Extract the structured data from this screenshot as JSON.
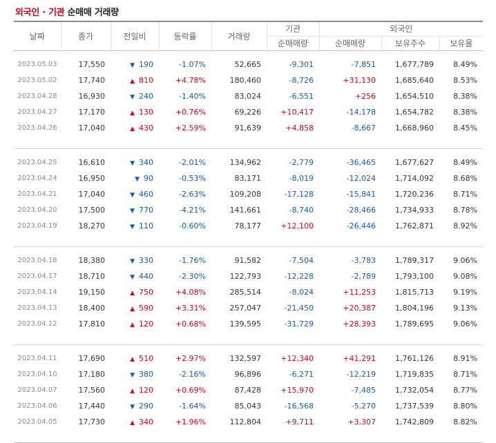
{
  "title": {
    "part1": "외국인 · 기관",
    "part2": " 순매매 거래량"
  },
  "headers": {
    "date": "날짜",
    "close": "종가",
    "change": "전일비",
    "rate": "등락률",
    "volume": "거래량",
    "institution": "기관",
    "foreign": "외국인",
    "inst_net": "순매매량",
    "foreign_net": "순매매량",
    "foreign_shares": "보유주수",
    "foreign_ratio": "보유율"
  },
  "colors": {
    "up": "#e0001b",
    "down": "#1259c3"
  },
  "groups": [
    {
      "rows": [
        {
          "date": "2023.05.03",
          "close": "17,550",
          "dir": "down",
          "change": "190",
          "rate": "-1.07%",
          "volume": "52,665",
          "inst": "-9,301",
          "foreign": "-7,851",
          "shares": "1,677,789",
          "ratio": "8.49%"
        },
        {
          "date": "2023.05.02",
          "close": "17,740",
          "dir": "up",
          "change": "810",
          "rate": "+4.78%",
          "volume": "180,460",
          "inst": "-8,726",
          "foreign": "+31,130",
          "shares": "1,685,640",
          "ratio": "8.53%"
        },
        {
          "date": "2023.04.28",
          "close": "16,930",
          "dir": "down",
          "change": "240",
          "rate": "-1.40%",
          "volume": "83,024",
          "inst": "-6,551",
          "foreign": "+256",
          "shares": "1,654,510",
          "ratio": "8.38%"
        },
        {
          "date": "2023.04.27",
          "close": "17,170",
          "dir": "up",
          "change": "130",
          "rate": "+0.76%",
          "volume": "69,226",
          "inst": "+10,417",
          "foreign": "-14,178",
          "shares": "1,654,782",
          "ratio": "8.38%"
        },
        {
          "date": "2023.04.26",
          "close": "17,040",
          "dir": "up",
          "change": "430",
          "rate": "+2.59%",
          "volume": "91,639",
          "inst": "+4,858",
          "foreign": "-8,667",
          "shares": "1,668,960",
          "ratio": "8.45%"
        }
      ]
    },
    {
      "rows": [
        {
          "date": "2023.04.25",
          "close": "16,610",
          "dir": "down",
          "change": "340",
          "rate": "-2.01%",
          "volume": "134,962",
          "inst": "-2,779",
          "foreign": "-36,465",
          "shares": "1,677,627",
          "ratio": "8.49%"
        },
        {
          "date": "2023.04.24",
          "close": "16,950",
          "dir": "down",
          "change": "90",
          "rate": "-0.53%",
          "volume": "83,171",
          "inst": "-8,019",
          "foreign": "-12,024",
          "shares": "1,714,092",
          "ratio": "8.68%"
        },
        {
          "date": "2023.04.21",
          "close": "17,040",
          "dir": "down",
          "change": "460",
          "rate": "-2.63%",
          "volume": "109,208",
          "inst": "-17,128",
          "foreign": "-15,841",
          "shares": "1,720,236",
          "ratio": "8.71%"
        },
        {
          "date": "2023.04.20",
          "close": "17,500",
          "dir": "down",
          "change": "770",
          "rate": "-4.21%",
          "volume": "141,661",
          "inst": "-8,740",
          "foreign": "-28,466",
          "shares": "1,734,933",
          "ratio": "8.78%"
        },
        {
          "date": "2023.04.19",
          "close": "18,270",
          "dir": "down",
          "change": "110",
          "rate": "-0.60%",
          "volume": "78,177",
          "inst": "+12,100",
          "foreign": "-26,446",
          "shares": "1,762,871",
          "ratio": "8.92%"
        }
      ]
    },
    {
      "rows": [
        {
          "date": "2023.04.18",
          "close": "18,380",
          "dir": "down",
          "change": "330",
          "rate": "-1.76%",
          "volume": "91,582",
          "inst": "-7,504",
          "foreign": "-3,783",
          "shares": "1,789,317",
          "ratio": "9.06%"
        },
        {
          "date": "2023.04.17",
          "close": "18,710",
          "dir": "down",
          "change": "440",
          "rate": "-2.30%",
          "volume": "122,793",
          "inst": "-12,228",
          "foreign": "-2,789",
          "shares": "1,793,100",
          "ratio": "9.08%"
        },
        {
          "date": "2023.04.14",
          "close": "19,150",
          "dir": "up",
          "change": "750",
          "rate": "+4.08%",
          "volume": "285,514",
          "inst": "-8,024",
          "foreign": "+11,253",
          "shares": "1,815,713",
          "ratio": "9.19%"
        },
        {
          "date": "2023.04.13",
          "close": "18,400",
          "dir": "up",
          "change": "590",
          "rate": "+3.31%",
          "volume": "257,047",
          "inst": "-21,450",
          "foreign": "+20,387",
          "shares": "1,804,196",
          "ratio": "9.13%"
        },
        {
          "date": "2023.04.12",
          "close": "17,810",
          "dir": "up",
          "change": "120",
          "rate": "+0.68%",
          "volume": "139,595",
          "inst": "-31,729",
          "foreign": "+28,393",
          "shares": "1,789,695",
          "ratio": "9.06%"
        }
      ]
    },
    {
      "rows": [
        {
          "date": "2023.04.11",
          "close": "17,690",
          "dir": "up",
          "change": "510",
          "rate": "+2.97%",
          "volume": "132,597",
          "inst": "+12,340",
          "foreign": "+41,291",
          "shares": "1,761,126",
          "ratio": "8.91%"
        },
        {
          "date": "2023.04.10",
          "close": "17,180",
          "dir": "down",
          "change": "380",
          "rate": "-2.16%",
          "volume": "96,896",
          "inst": "-6,271",
          "foreign": "-12,219",
          "shares": "1,719,835",
          "ratio": "8.71%"
        },
        {
          "date": "2023.04.07",
          "close": "17,560",
          "dir": "up",
          "change": "120",
          "rate": "+0.69%",
          "volume": "87,428",
          "inst": "+15,970",
          "foreign": "-7,485",
          "shares": "1,732,054",
          "ratio": "8.77%"
        },
        {
          "date": "2023.04.06",
          "close": "17,440",
          "dir": "down",
          "change": "290",
          "rate": "-1.64%",
          "volume": "85,043",
          "inst": "-16,568",
          "foreign": "-5,270",
          "shares": "1,737,539",
          "ratio": "8.80%"
        },
        {
          "date": "2023.04.05",
          "close": "17,730",
          "dir": "up",
          "change": "340",
          "rate": "+1.96%",
          "volume": "112,804",
          "inst": "+9,711",
          "foreign": "+3,307",
          "shares": "1,742,809",
          "ratio": "8.82%"
        }
      ]
    }
  ]
}
